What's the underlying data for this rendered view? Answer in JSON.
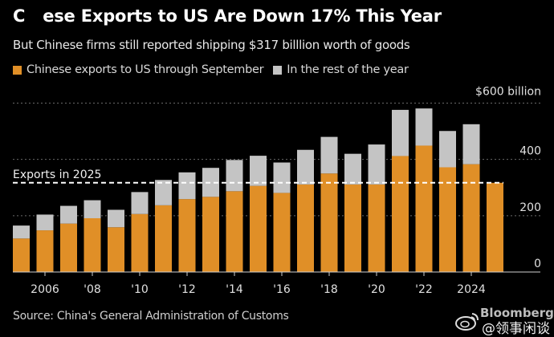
{
  "chart_data": {
    "type": "bar",
    "stacked": true,
    "title_visible_prefix": "C",
    "title_visible_suffix": "ese Exports to US Are Down 17% This Year",
    "subtitle": "But Chinese firms still reported shipping $317 billlion worth of goods",
    "categories": [
      "2005",
      "2006",
      "2007",
      "2008",
      "2009",
      "2010",
      "2011",
      "2012",
      "2013",
      "2014",
      "2015",
      "2016",
      "2017",
      "2018",
      "2019",
      "2020",
      "2021",
      "2022",
      "2023",
      "2024",
      "2025"
    ],
    "series": [
      {
        "name": "Chinese exports to US through September",
        "color": "#e08f27",
        "values": [
          119,
          148,
          172,
          191,
          159,
          206,
          237,
          259,
          267,
          287,
          306,
          281,
          311,
          350,
          311,
          311,
          412,
          449,
          372,
          383,
          317
        ]
      },
      {
        "name": "In the rest of the year",
        "color": "#c4c4c4",
        "values": [
          46,
          56,
          63,
          64,
          62,
          78,
          90,
          95,
          103,
          111,
          107,
          108,
          123,
          130,
          109,
          142,
          164,
          132,
          129,
          142,
          0
        ]
      }
    ],
    "totals": [
      165,
      204,
      235,
      255,
      221,
      284,
      327,
      354,
      370,
      398,
      413,
      389,
      434,
      480,
      420,
      453,
      576,
      581,
      501,
      525,
      317
    ],
    "reference_line": {
      "label": "Exports in 2025",
      "value": 317,
      "style": "dashed",
      "color": "#ffffff"
    },
    "yaxis": {
      "ticks": [
        0,
        200,
        400,
        600
      ],
      "tick_labels": [
        "0",
        "200",
        "400",
        "$600 billion"
      ],
      "position": "right",
      "ylim": [
        0,
        600
      ],
      "grid": "dotted"
    },
    "xaxis": {
      "tick_years": [
        "2006",
        "2008",
        "2010",
        "2012",
        "2014",
        "2016",
        "2018",
        "2020",
        "2022",
        "2024"
      ],
      "tick_labels": [
        "2006",
        "'08",
        "'10",
        "'12",
        "'14",
        "'16",
        "'18",
        "'20",
        "'22",
        "2024"
      ]
    },
    "xlabel": "",
    "ylabel": "",
    "legend_position": "top-left"
  },
  "legend": {
    "items": [
      {
        "label": "Chinese exports to US through September",
        "color": "#e08f27"
      },
      {
        "label": "In the rest of the year",
        "color": "#c4c4c4"
      }
    ]
  },
  "footer": {
    "source": "Source: China's General Administration of Customs",
    "brand": "Bloomberg",
    "watermark_handle": "@领事闲谈"
  }
}
